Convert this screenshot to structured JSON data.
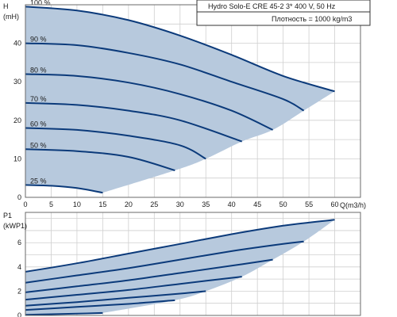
{
  "chart_data": [
    {
      "type": "line",
      "id": "head",
      "title_line1": "Hydro Solo-E CRE 45-2   3* 400 V, 50 Hz",
      "title_line2": "Плотность = 1000 kg/m3",
      "ylabel": "H",
      "ylabel_unit": "(mH)",
      "xlabel": "Q(m3/h)",
      "xlim": [
        0,
        65
      ],
      "ylim": [
        0,
        50
      ],
      "xticks": [
        0,
        5,
        10,
        15,
        20,
        25,
        30,
        35,
        40,
        45,
        50,
        55,
        60
      ],
      "yticks": [
        0,
        10,
        20,
        30,
        40
      ],
      "grid": true,
      "fill_color": "#b7c9dd",
      "line_color": "#0b3a7a",
      "series": [
        {
          "label": "100 %",
          "x": [
            0,
            10,
            20,
            30,
            40,
            50,
            60
          ],
          "y": [
            49.5,
            48.5,
            46.0,
            42.0,
            37.0,
            31.5,
            27.5
          ]
        },
        {
          "label": "90 %",
          "x": [
            0,
            10,
            20,
            30,
            40,
            50,
            54
          ],
          "y": [
            40.0,
            39.5,
            37.5,
            34.5,
            30.0,
            25.5,
            22.5
          ]
        },
        {
          "label": "80 %",
          "x": [
            0,
            10,
            20,
            30,
            40,
            48
          ],
          "y": [
            32.0,
            31.5,
            29.8,
            26.8,
            22.5,
            17.5
          ]
        },
        {
          "label": "70 %",
          "x": [
            0,
            10,
            20,
            30,
            42
          ],
          "y": [
            24.5,
            24.0,
            22.5,
            20.0,
            14.5
          ]
        },
        {
          "label": "60 %",
          "x": [
            0,
            10,
            20,
            30,
            35
          ],
          "y": [
            18.0,
            17.5,
            16.0,
            13.5,
            10.0
          ]
        },
        {
          "label": "50 %",
          "x": [
            0,
            10,
            20,
            29
          ],
          "y": [
            12.5,
            12.0,
            10.5,
            7.0
          ]
        },
        {
          "label": "25 %",
          "x": [
            0,
            5,
            10,
            15
          ],
          "y": [
            3.2,
            3.0,
            2.4,
            1.2
          ]
        }
      ]
    },
    {
      "type": "line",
      "id": "power",
      "ylabel": "P1",
      "ylabel_unit": "(kWP1)",
      "xlim": [
        0,
        65
      ],
      "ylim": [
        0,
        8.5
      ],
      "yticks": [
        0,
        2,
        4,
        6
      ],
      "grid": true,
      "fill_color": "#b7c9dd",
      "line_color": "#0b3a7a",
      "series": [
        {
          "label": "100 %",
          "x": [
            0,
            10,
            20,
            30,
            40,
            50,
            60
          ],
          "y": [
            3.6,
            4.3,
            5.1,
            5.9,
            6.7,
            7.4,
            7.9
          ]
        },
        {
          "label": "90 %",
          "x": [
            0,
            10,
            20,
            30,
            40,
            50,
            54
          ],
          "y": [
            2.7,
            3.3,
            3.9,
            4.6,
            5.3,
            5.9,
            6.1
          ]
        },
        {
          "label": "80 %",
          "x": [
            0,
            10,
            20,
            30,
            40,
            48
          ],
          "y": [
            1.9,
            2.4,
            2.9,
            3.5,
            4.1,
            4.6
          ]
        },
        {
          "label": "70 %",
          "x": [
            0,
            10,
            20,
            30,
            42
          ],
          "y": [
            1.3,
            1.7,
            2.1,
            2.6,
            3.2
          ]
        },
        {
          "label": "60 %",
          "x": [
            0,
            10,
            20,
            30,
            35
          ],
          "y": [
            0.8,
            1.1,
            1.45,
            1.8,
            2.0
          ]
        },
        {
          "label": "50 %",
          "x": [
            0,
            10,
            20,
            29
          ],
          "y": [
            0.45,
            0.7,
            0.95,
            1.25
          ]
        },
        {
          "label": "25 %",
          "x": [
            0,
            5,
            10,
            15
          ],
          "y": [
            0.05,
            0.1,
            0.15,
            0.2
          ]
        }
      ]
    }
  ]
}
